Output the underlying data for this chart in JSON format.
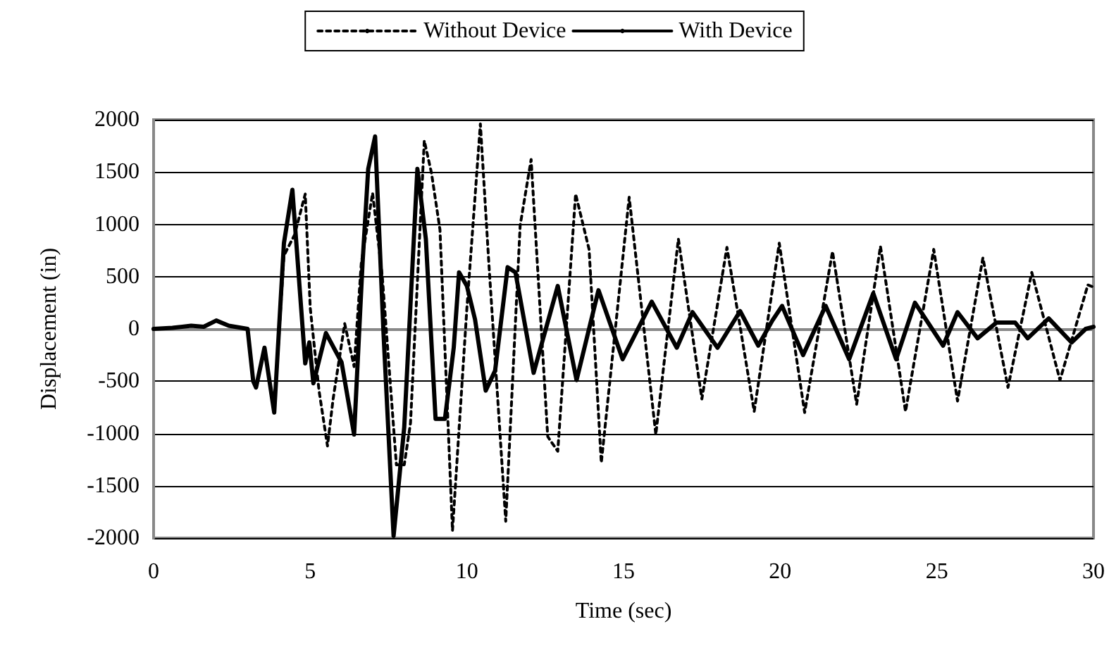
{
  "chart_data": {
    "type": "line",
    "xlabel": "Time (sec)",
    "ylabel": "Displacement (in)",
    "xlim": [
      0,
      30
    ],
    "xticks": [
      0,
      5,
      10,
      15,
      20,
      25,
      30
    ],
    "ylim": [
      -2000,
      2000
    ],
    "yticks": [
      -2000,
      -1500,
      -1000,
      -500,
      0,
      500,
      1000,
      1500,
      2000
    ],
    "grid": "y",
    "legend": "top",
    "marker": "none",
    "series": [
      {
        "name": "Without Device",
        "color": "#000000",
        "line_style": "dotted",
        "x": [
          0,
          0.6,
          1.2,
          1.6,
          2.0,
          2.4,
          2.8,
          3.0,
          3.18,
          3.27,
          3.54,
          3.85,
          4.16,
          4.5,
          4.84,
          5.0,
          5.28,
          5.55,
          5.73,
          6.1,
          6.4,
          6.63,
          6.99,
          7.3,
          7.75,
          8.0,
          8.2,
          8.64,
          8.87,
          9.14,
          9.54,
          10.0,
          10.43,
          10.7,
          11.24,
          11.7,
          12.05,
          12.58,
          12.9,
          13.47,
          13.9,
          14.29,
          15.18,
          16.03,
          16.75,
          17.5,
          18.3,
          19.17,
          19.97,
          20.78,
          21.67,
          22.44,
          23.2,
          24.0,
          24.9,
          25.66,
          26.47,
          27.27,
          28.03,
          28.93,
          29.82,
          30
        ],
        "values": [
          0,
          10,
          30,
          20,
          80,
          30,
          10,
          0,
          -500,
          -560,
          -180,
          -800,
          700,
          900,
          1290,
          200,
          -590,
          -1120,
          -670,
          50,
          -360,
          630,
          1300,
          500,
          -1300,
          -1300,
          -900,
          1800,
          1490,
          950,
          -1930,
          200,
          1960,
          630,
          -1840,
          990,
          1620,
          -1030,
          -1170,
          1290,
          760,
          -1280,
          1260,
          -1010,
          860,
          -670,
          780,
          -790,
          820,
          -800,
          740,
          -720,
          790,
          -790,
          760,
          -690,
          680,
          -560,
          540,
          -490,
          420,
          400
        ]
      },
      {
        "name": "With Device",
        "color": "#000000",
        "line_style": "solid",
        "x": [
          0,
          0.6,
          1.2,
          1.6,
          2.0,
          2.4,
          2.8,
          3.0,
          3.18,
          3.27,
          3.54,
          3.85,
          4.16,
          4.43,
          4.84,
          4.97,
          5.1,
          5.5,
          6.0,
          6.4,
          6.67,
          6.85,
          7.07,
          7.34,
          7.66,
          8.0,
          8.42,
          8.69,
          9.0,
          9.3,
          9.58,
          9.75,
          10.0,
          10.26,
          10.6,
          10.9,
          11.3,
          11.55,
          12.13,
          12.9,
          13.5,
          14.2,
          14.97,
          15.9,
          16.7,
          17.2,
          18.0,
          18.72,
          19.3,
          19.75,
          20.06,
          20.73,
          21.45,
          22.2,
          22.97,
          23.7,
          24.3,
          25.2,
          25.66,
          26.3,
          26.9,
          27.5,
          27.9,
          28.57,
          29.3,
          29.75,
          30
        ],
        "values": [
          0,
          10,
          30,
          20,
          80,
          30,
          10,
          0,
          -500,
          -560,
          -180,
          -800,
          820,
          1330,
          -330,
          -130,
          -520,
          -40,
          -320,
          -1010,
          630,
          1530,
          1840,
          -50,
          -1980,
          -940,
          1530,
          860,
          -860,
          -860,
          -180,
          540,
          410,
          90,
          -590,
          -400,
          590,
          540,
          -420,
          410,
          -490,
          370,
          -290,
          260,
          -180,
          160,
          -180,
          170,
          -160,
          80,
          220,
          -250,
          220,
          -290,
          340,
          -290,
          250,
          -160,
          160,
          -90,
          60,
          60,
          -90,
          100,
          -130,
          0,
          20
        ]
      }
    ]
  }
}
